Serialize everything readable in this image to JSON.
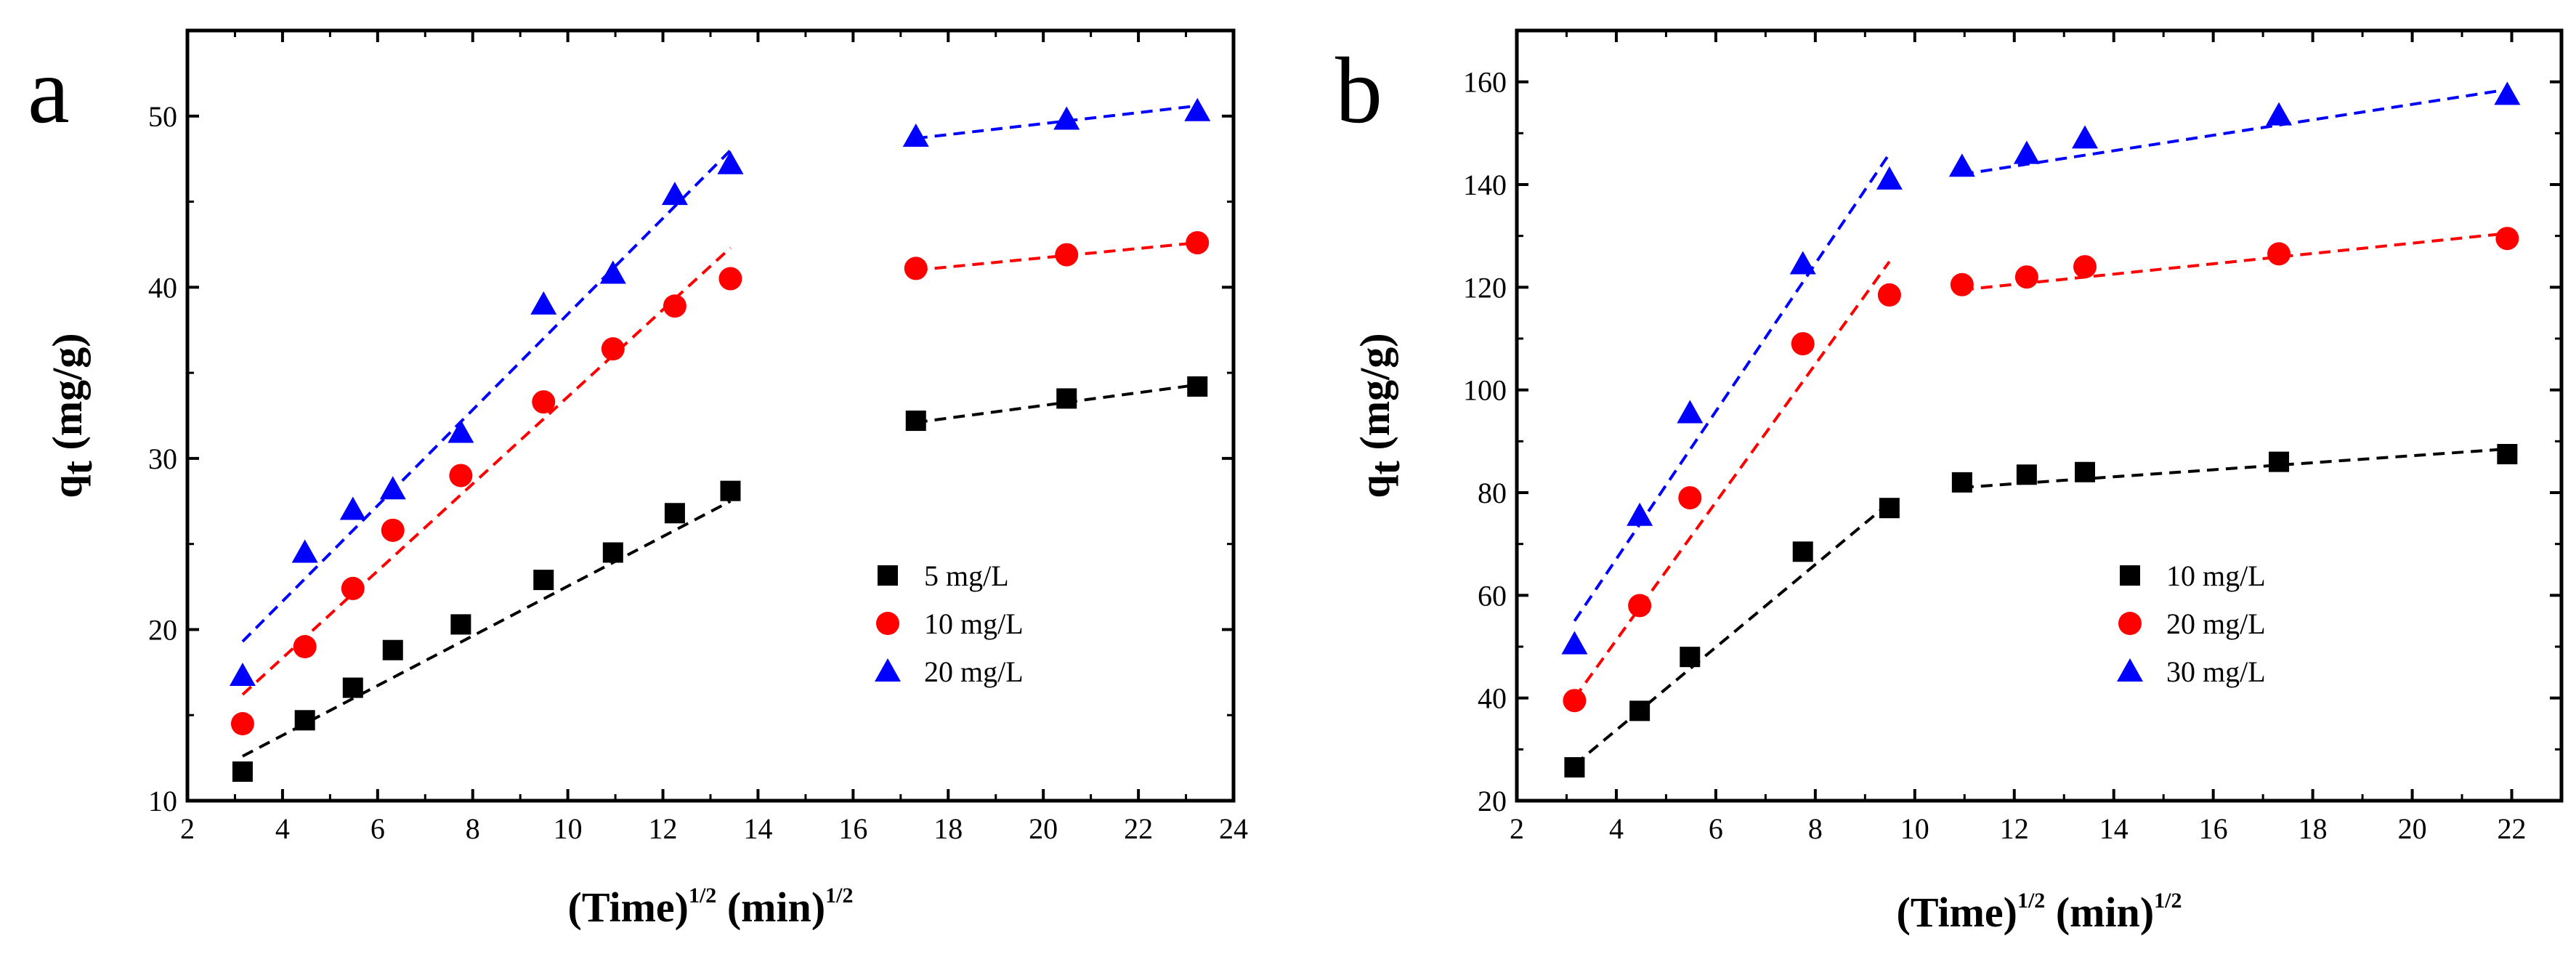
{
  "chart_data": [
    {
      "type": "scatter",
      "panel_label": "a",
      "xlabel": {
        "main": "(Time)",
        "sup1": "1/2",
        "mid": " (min)",
        "sup2": "1/2"
      },
      "ylabel": {
        "main": "q",
        "sub": "t",
        "unit": " (mg/g)"
      },
      "xlim": [
        2,
        24
      ],
      "ylim": [
        10,
        55
      ],
      "xticks": [
        2,
        4,
        6,
        8,
        10,
        12,
        14,
        16,
        18,
        20,
        22,
        24
      ],
      "yticks": [
        10,
        20,
        30,
        40,
        50
      ],
      "legend_position": "right-middle",
      "series": [
        {
          "name": "5 mg/L",
          "marker": "square",
          "color": "#000000",
          "x": [
            3.16,
            4.47,
            5.48,
            6.32,
            7.75,
            9.49,
            10.95,
            12.25,
            13.42,
            17.32,
            20.49,
            23.24
          ],
          "y": [
            11.7,
            14.7,
            16.6,
            18.8,
            20.3,
            22.9,
            24.5,
            26.8,
            28.1,
            32.2,
            33.5,
            34.2
          ],
          "fits": [
            {
              "x": [
                3.16,
                13.42
              ],
              "y": [
                12.6,
                27.5
              ]
            },
            {
              "x": [
                17.32,
                23.24
              ],
              "y": [
                32.1,
                34.3
              ]
            }
          ]
        },
        {
          "name": "10 mg/L",
          "marker": "circle",
          "color": "#ff0000",
          "x": [
            3.16,
            4.47,
            5.48,
            6.32,
            7.75,
            9.49,
            10.95,
            12.25,
            13.42,
            17.32,
            20.49,
            23.24
          ],
          "y": [
            14.5,
            19.0,
            22.4,
            25.8,
            29.0,
            33.3,
            36.4,
            38.9,
            40.5,
            41.1,
            41.9,
            42.6
          ],
          "fits": [
            {
              "x": [
                3.16,
                13.42
              ],
              "y": [
                16.2,
                42.3
              ]
            },
            {
              "x": [
                17.32,
                23.24
              ],
              "y": [
                41.0,
                42.6
              ]
            }
          ]
        },
        {
          "name": "20 mg/L",
          "marker": "triangle",
          "color": "#0000ff",
          "x": [
            3.16,
            4.47,
            5.48,
            6.32,
            7.75,
            9.49,
            10.95,
            12.25,
            13.42,
            17.32,
            20.49,
            23.24
          ],
          "y": [
            17.3,
            24.5,
            27.0,
            28.2,
            31.5,
            39.0,
            40.8,
            45.4,
            47.2,
            48.8,
            49.8,
            50.3
          ],
          "fits": [
            {
              "x": [
                3.16,
                13.42
              ],
              "y": [
                19.3,
                48.0
              ]
            },
            {
              "x": [
                17.32,
                23.24
              ],
              "y": [
                48.7,
                50.6
              ]
            }
          ]
        }
      ]
    },
    {
      "type": "scatter",
      "panel_label": "b",
      "xlabel": {
        "main": "(Time)",
        "sup1": "1/2",
        "mid": " (min)",
        "sup2": "1/2"
      },
      "ylabel": {
        "main": "q",
        "sub": "t",
        "unit": " (mg/g)"
      },
      "xlim": [
        2,
        23
      ],
      "ylim": [
        20,
        170
      ],
      "xticks": [
        2,
        4,
        6,
        8,
        10,
        12,
        14,
        16,
        18,
        20,
        22
      ],
      "yticks": [
        20,
        40,
        60,
        80,
        100,
        120,
        140,
        160
      ],
      "legend_position": "right-bottom",
      "series": [
        {
          "name": "10 mg/L",
          "marker": "square",
          "color": "#000000",
          "x": [
            3.16,
            4.47,
            5.48,
            7.75,
            9.49,
            10.95,
            12.25,
            13.42,
            17.32,
            21.91
          ],
          "y": [
            26.5,
            37.5,
            48.0,
            68.5,
            77.0,
            82.0,
            83.5,
            84.0,
            86.0,
            87.5
          ],
          "fits": [
            {
              "x": [
                3.16,
                9.49
              ],
              "y": [
                27.0,
                78.0
              ]
            },
            {
              "x": [
                10.95,
                21.91
              ],
              "y": [
                81.0,
                88.5
              ]
            }
          ]
        },
        {
          "name": "20 mg/L",
          "marker": "circle",
          "color": "#ff0000",
          "x": [
            3.16,
            4.47,
            5.48,
            7.75,
            9.49,
            10.95,
            12.25,
            13.42,
            17.32,
            21.91
          ],
          "y": [
            39.5,
            58.0,
            79.0,
            109.0,
            118.5,
            120.5,
            122.0,
            124.0,
            126.5,
            129.5
          ],
          "fits": [
            {
              "x": [
                3.16,
                9.49
              ],
              "y": [
                40.0,
                125.0
              ]
            },
            {
              "x": [
                10.95,
                21.91
              ],
              "y": [
                119.5,
                130.5
              ]
            }
          ]
        },
        {
          "name": "30 mg/L",
          "marker": "triangle",
          "color": "#0000ff",
          "x": [
            3.16,
            4.47,
            5.48,
            7.75,
            9.49,
            10.95,
            12.25,
            13.42,
            17.32,
            21.91
          ],
          "y": [
            50.5,
            75.5,
            95.5,
            124.5,
            141.0,
            143.5,
            146.0,
            149.0,
            153.5,
            157.5
          ],
          "fits": [
            {
              "x": [
                3.16,
                9.49
              ],
              "y": [
                55.0,
                146.0
              ]
            },
            {
              "x": [
                10.95,
                21.91
              ],
              "y": [
                142.0,
                158.5
              ]
            }
          ]
        }
      ]
    }
  ]
}
